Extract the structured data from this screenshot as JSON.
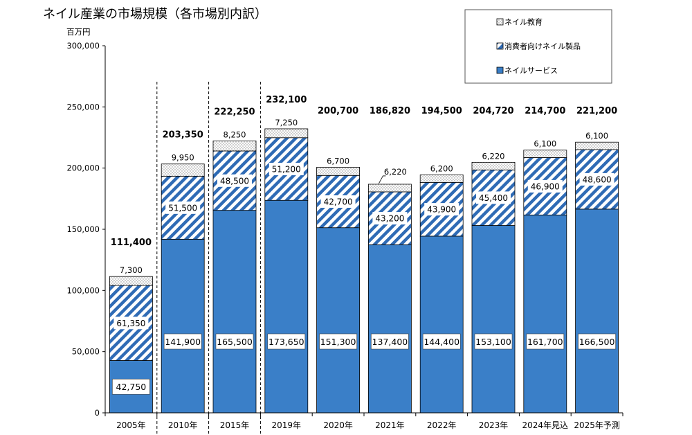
{
  "chart_data": {
    "type": "bar",
    "stacked": true,
    "title": "ネイル産業の市場規模（各市場別内訳）",
    "ylabel": "百万円",
    "xlabel": "",
    "ylim": [
      0,
      300000
    ],
    "yticks": [
      0,
      50000,
      100000,
      150000,
      200000,
      250000,
      300000
    ],
    "ytick_labels": [
      "0",
      "50,000",
      "100,000",
      "150,000",
      "200,000",
      "250,000",
      "300,000"
    ],
    "grid": false,
    "legend_position": "top-right",
    "categories": [
      "2005年",
      "2010年",
      "2015年",
      "2019年",
      "2020年",
      "2021年",
      "2022年",
      "2023年",
      "2024年見込",
      "2025年予測"
    ],
    "series": [
      {
        "name": "ネイルサービス",
        "values": [
          42750,
          141900,
          165500,
          173650,
          151300,
          137400,
          144400,
          153100,
          161700,
          166500
        ],
        "color": "#3a7fc8",
        "pattern": "solid"
      },
      {
        "name": "消費者向けネイル製品",
        "values": [
          61350,
          51500,
          48500,
          51200,
          42700,
          43200,
          43900,
          45400,
          46900,
          48600
        ],
        "color": "#2f6bb5",
        "pattern": "diagonal-stripes"
      },
      {
        "name": "ネイル教育",
        "values": [
          7300,
          9950,
          8250,
          7250,
          6700,
          6220,
          6200,
          6220,
          6100,
          6100
        ],
        "color": "#9a9a9a",
        "pattern": "dots"
      }
    ],
    "value_labels": {
      "ネイルサービス": [
        "42,750",
        "141,900",
        "165,500",
        "173,650",
        "151,300",
        "137,400",
        "144,400",
        "153,100",
        "161,700",
        "166,500"
      ],
      "消費者向けネイル製品": [
        "61,350",
        "51,500",
        "48,500",
        "51,200",
        "42,700",
        "43,200",
        "43,900",
        "45,400",
        "46,900",
        "48,600"
      ],
      "ネイル教育": [
        "7,300",
        "9,950",
        "8,250",
        "7,250",
        "6,700",
        "6,220",
        "6,200",
        "6,220",
        "6,100",
        "6,100"
      ]
    },
    "totals": [
      111400,
      203350,
      222250,
      232100,
      200700,
      186820,
      194500,
      204720,
      214700,
      221200
    ],
    "total_labels": [
      "111,400",
      "203,350",
      "222,250",
      "232,100",
      "200,700",
      "186,820",
      "194,500",
      "204,720",
      "214,700",
      "221,200"
    ],
    "dashed_separators_after": [
      "2005年",
      "2010年",
      "2015年"
    ]
  }
}
